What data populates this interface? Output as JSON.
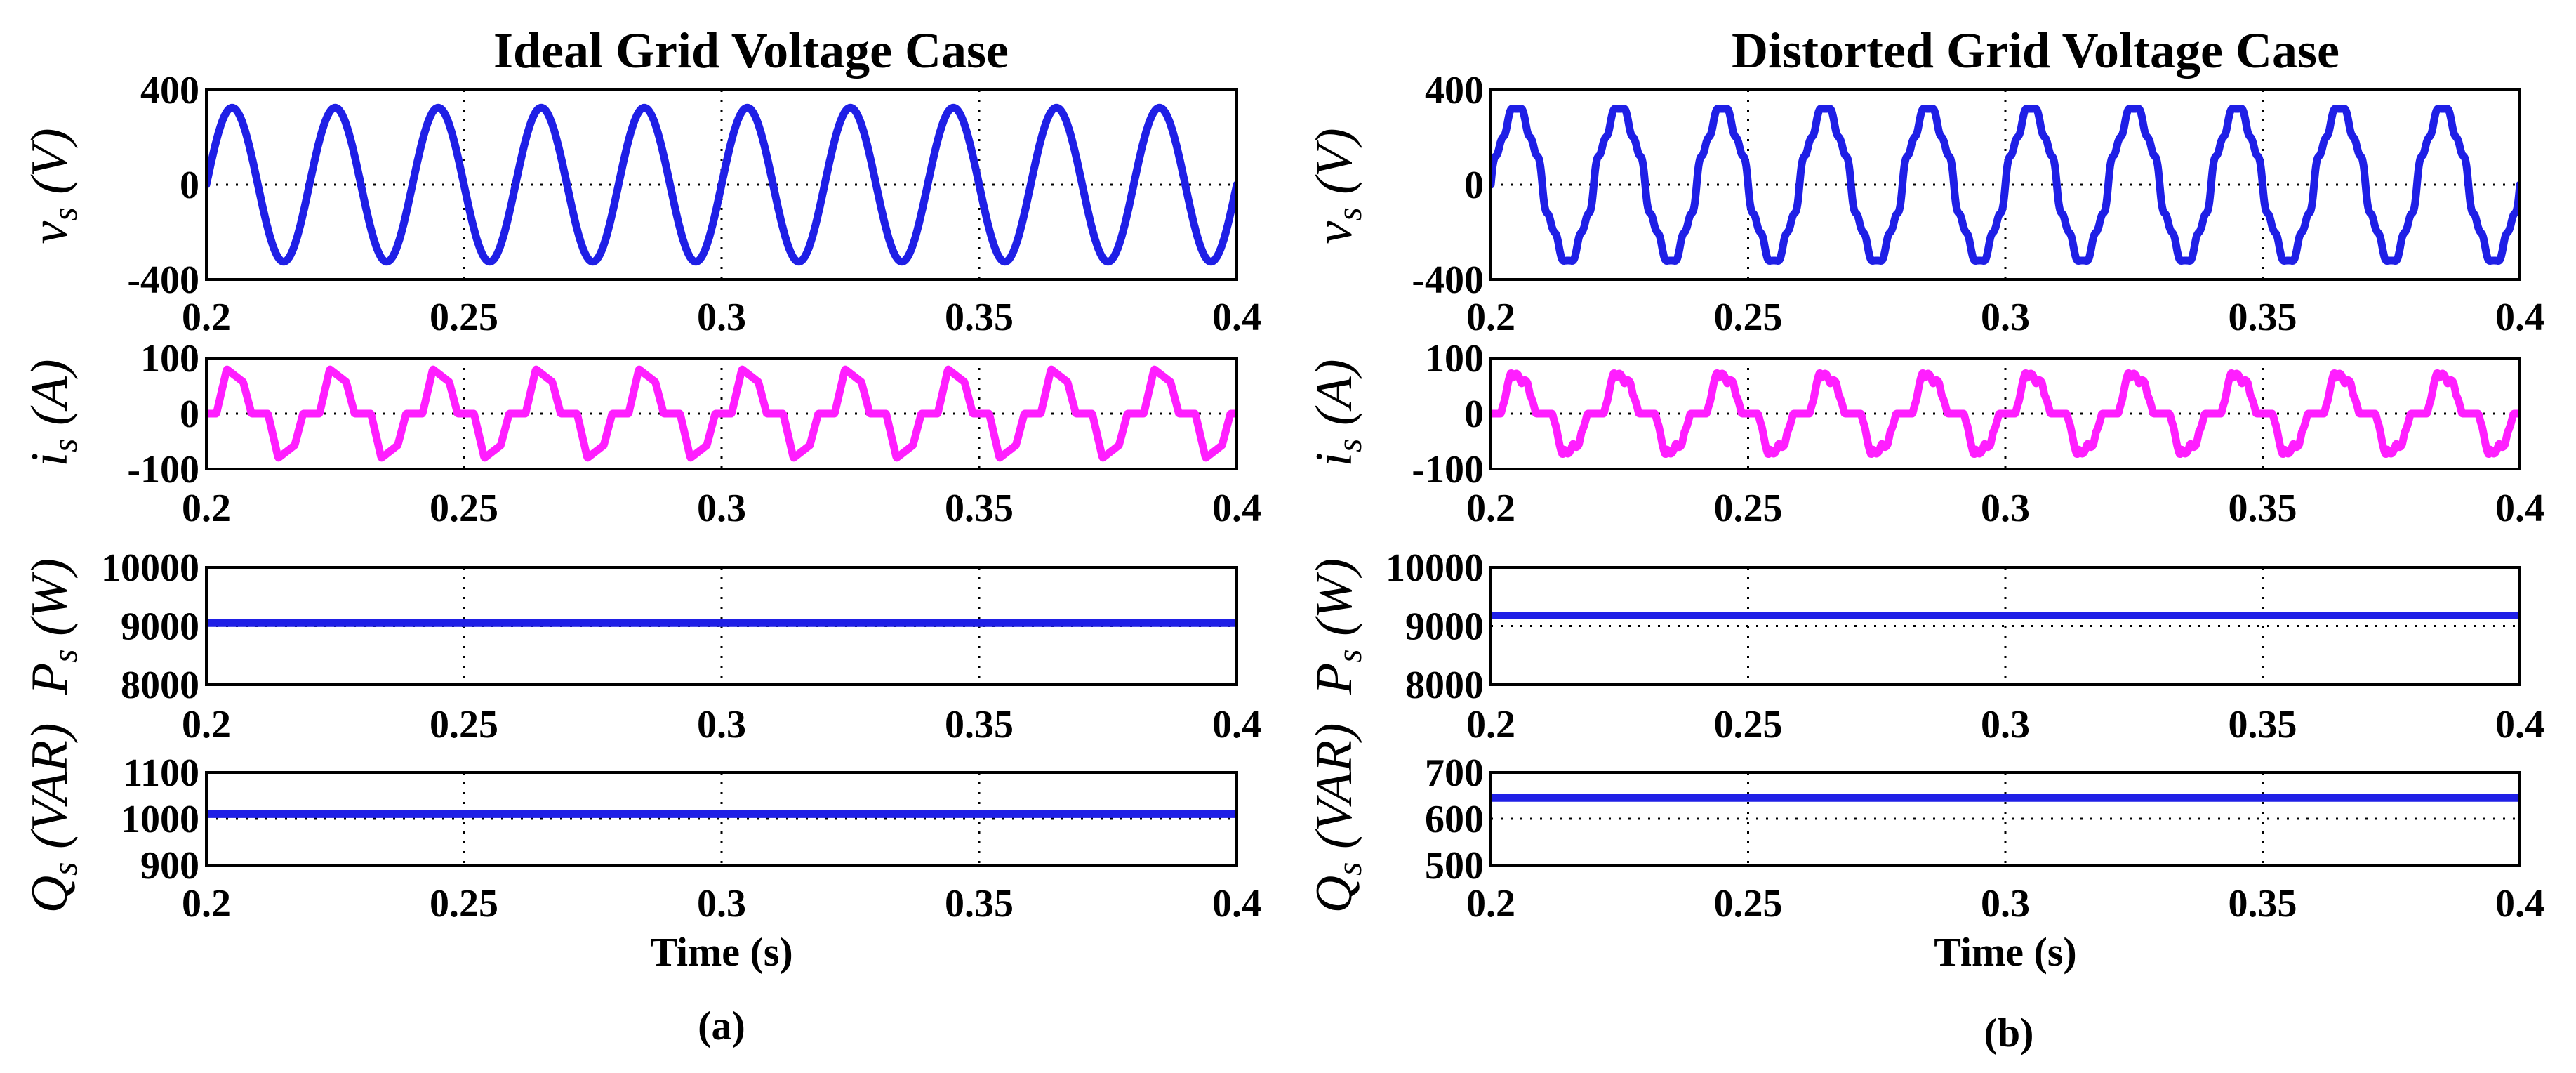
{
  "chart_data": [
    {
      "type": "line",
      "figure_label": "(a)",
      "title": "Ideal Grid Voltage Case",
      "xlabel": "Time (s)",
      "x_range": [
        0.2,
        0.4
      ],
      "x_ticks": [
        "0.2",
        "0.25",
        "0.3",
        "0.35",
        "0.4"
      ],
      "subplots": [
        {
          "ylabel": {
            "base": "v",
            "sub": "s",
            "unit": "(V)"
          },
          "ylim": [
            -400,
            400
          ],
          "y_ticks": [
            "400",
            "0",
            "-400"
          ],
          "series": [
            {
              "name": "v_s",
              "color": "#1f1fe6",
              "waveform": "sine",
              "frequency_hz": 50,
              "amplitude": 325,
              "harmonics": []
            }
          ]
        },
        {
          "ylabel": {
            "base": "i",
            "sub": "s",
            "unit": "(A)"
          },
          "ylim": [
            -100,
            100
          ],
          "y_ticks": [
            "100",
            "0",
            "-100"
          ],
          "series": [
            {
              "name": "i_s",
              "color": "#ff1eff",
              "waveform": "rectifier_current",
              "frequency_hz": 50,
              "amplitude": 80,
              "ripple": false
            }
          ]
        },
        {
          "ylabel": {
            "base": "P",
            "sub": "s",
            "unit": "(W)"
          },
          "ylim": [
            8000,
            10000
          ],
          "y_ticks": [
            "10000",
            "9000",
            "8000"
          ],
          "series": [
            {
              "name": "P_s",
              "color": "#1f1fe6",
              "waveform": "constant",
              "value": 9050
            }
          ]
        },
        {
          "ylabel": {
            "base": "Q",
            "sub": "s",
            "unit": "(VAR)"
          },
          "ylim": [
            900,
            1100
          ],
          "y_ticks": [
            "1100",
            "1000",
            "900"
          ],
          "series": [
            {
              "name": "Q_s",
              "color": "#1f1fe6",
              "waveform": "constant",
              "value": 1010
            }
          ]
        }
      ]
    },
    {
      "type": "line",
      "figure_label": "(b)",
      "title": "Distorted Grid Voltage Case",
      "xlabel": "Time (s)",
      "x_range": [
        0.2,
        0.4
      ],
      "x_ticks": [
        "0.2",
        "0.25",
        "0.3",
        "0.35",
        "0.4"
      ],
      "subplots": [
        {
          "ylabel": {
            "base": "v",
            "sub": "s",
            "unit": "(V)"
          },
          "ylim": [
            -400,
            400
          ],
          "y_ticks": [
            "400",
            "0",
            "-400"
          ],
          "series": [
            {
              "name": "v_s",
              "color": "#1f1fe6",
              "waveform": "sine",
              "frequency_hz": 50,
              "amplitude": 320,
              "harmonics": [
                [
                  5,
                  0.06
                ],
                [
                  7,
                  0.05
                ],
                [
                  11,
                  0.035
                ],
                [
                  13,
                  0.025
                ]
              ]
            }
          ]
        },
        {
          "ylabel": {
            "base": "i",
            "sub": "s",
            "unit": "(A)"
          },
          "ylim": [
            -100,
            100
          ],
          "y_ticks": [
            "100",
            "0",
            "-100"
          ],
          "series": [
            {
              "name": "i_s",
              "color": "#ff1eff",
              "waveform": "rectifier_current",
              "frequency_hz": 50,
              "amplitude": 80,
              "ripple": true
            }
          ]
        },
        {
          "ylabel": {
            "base": "P",
            "sub": "s",
            "unit": "(W)"
          },
          "ylim": [
            8000,
            10000
          ],
          "y_ticks": [
            "10000",
            "9000",
            "8000"
          ],
          "series": [
            {
              "name": "P_s",
              "color": "#1f1fe6",
              "waveform": "constant",
              "value": 9180
            }
          ]
        },
        {
          "ylabel": {
            "base": "Q",
            "sub": "s",
            "unit": "(VAR)"
          },
          "ylim": [
            500,
            700
          ],
          "y_ticks": [
            "700",
            "600",
            "500"
          ],
          "series": [
            {
              "name": "Q_s",
              "color": "#1f1fe6",
              "waveform": "constant",
              "value": 645
            }
          ]
        }
      ]
    }
  ]
}
